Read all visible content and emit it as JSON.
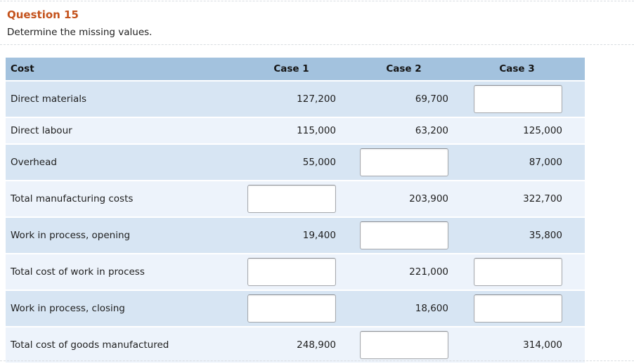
{
  "header": {
    "question_label": "Question 15",
    "prompt": "Determine the missing values."
  },
  "colors": {
    "accent_orange": "#c4531d",
    "table_header_bg": "#a3c2de",
    "row_odd_bg": "#d7e5f3",
    "row_even_bg": "#edf3fb",
    "input_border": "#a5a8ad",
    "text": "#1e1e1e"
  },
  "table": {
    "columns": [
      "Cost",
      "Case 1",
      "Case 2",
      "Case 3"
    ],
    "case_keys": [
      "case1",
      "case2",
      "case3"
    ],
    "rows": [
      {
        "label": "Direct materials",
        "cells": [
          {
            "type": "value",
            "text": "127,200"
          },
          {
            "type": "value",
            "text": "69,700"
          },
          {
            "type": "input",
            "value": ""
          }
        ]
      },
      {
        "label": "Direct labour",
        "cells": [
          {
            "type": "value",
            "text": "115,000"
          },
          {
            "type": "value",
            "text": "63,200"
          },
          {
            "type": "value",
            "text": "125,000"
          }
        ]
      },
      {
        "label": "Overhead",
        "cells": [
          {
            "type": "value",
            "text": "55,000"
          },
          {
            "type": "input",
            "value": ""
          },
          {
            "type": "value",
            "text": "87,000"
          }
        ]
      },
      {
        "label": "Total manufacturing costs",
        "cells": [
          {
            "type": "input",
            "value": ""
          },
          {
            "type": "value",
            "text": "203,900"
          },
          {
            "type": "value",
            "text": "322,700"
          }
        ]
      },
      {
        "label": "Work in process, opening",
        "cells": [
          {
            "type": "value",
            "text": "19,400"
          },
          {
            "type": "input",
            "value": ""
          },
          {
            "type": "value",
            "text": "35,800"
          }
        ]
      },
      {
        "label": "Total cost of work in process",
        "cells": [
          {
            "type": "input",
            "value": ""
          },
          {
            "type": "value",
            "text": "221,000"
          },
          {
            "type": "input",
            "value": ""
          }
        ]
      },
      {
        "label": "Work in process, closing",
        "cells": [
          {
            "type": "input",
            "value": ""
          },
          {
            "type": "value",
            "text": "18,600"
          },
          {
            "type": "input",
            "value": ""
          }
        ]
      },
      {
        "label": "Total cost of goods manufactured",
        "cells": [
          {
            "type": "value",
            "text": "248,900"
          },
          {
            "type": "input",
            "value": ""
          },
          {
            "type": "value",
            "text": "314,000"
          }
        ]
      }
    ]
  }
}
